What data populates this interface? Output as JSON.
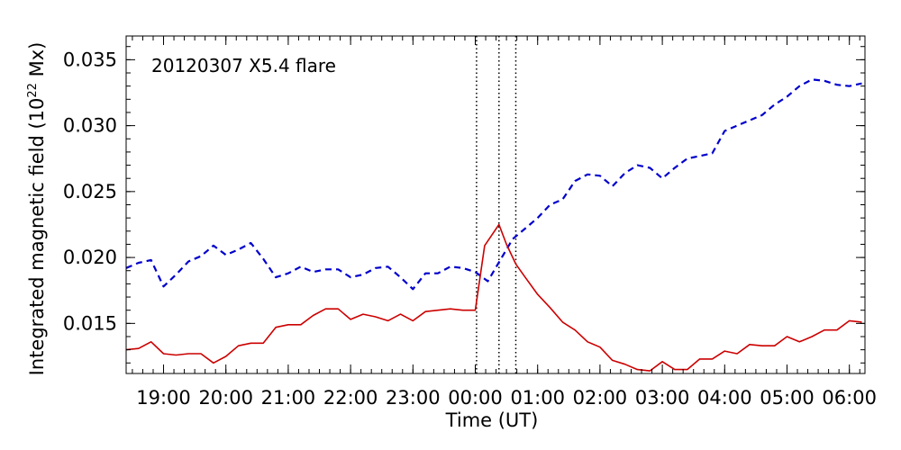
{
  "chart_data": {
    "type": "line",
    "annotation": "20120307 X5.4 flare",
    "xlabel": "Time (UT)",
    "ylabel_main": "Integrated magnetic field (10",
    "ylabel_sup": "22",
    "ylabel_end": " Mx)",
    "x_unit": "hours after 2012-03-06 00:00 UT",
    "xlim": [
      18.4,
      30.25
    ],
    "ylim": [
      0.0112,
      0.0368
    ],
    "xticks": [
      {
        "value": 19,
        "label": "19:00"
      },
      {
        "value": 20,
        "label": "20:00"
      },
      {
        "value": 21,
        "label": "21:00"
      },
      {
        "value": 22,
        "label": "22:00"
      },
      {
        "value": 23,
        "label": "23:00"
      },
      {
        "value": 24,
        "label": "00:00"
      },
      {
        "value": 25,
        "label": "01:00"
      },
      {
        "value": 26,
        "label": "02:00"
      },
      {
        "value": 27,
        "label": "03:00"
      },
      {
        "value": 28,
        "label": "04:00"
      },
      {
        "value": 29,
        "label": "05:00"
      },
      {
        "value": 30,
        "label": "06:00"
      }
    ],
    "yticks": [
      {
        "value": 0.015,
        "label": "0.015"
      },
      {
        "value": 0.02,
        "label": "0.020"
      },
      {
        "value": 0.025,
        "label": "0.025"
      },
      {
        "value": 0.03,
        "label": "0.030"
      },
      {
        "value": 0.035,
        "label": "0.035"
      }
    ],
    "vlines": [
      24.02,
      24.38,
      24.65
    ],
    "grid": false,
    "series": [
      {
        "color": "#0000cc",
        "style": "dashed",
        "x": [
          18.4,
          18.6,
          18.8,
          19.0,
          19.2,
          19.4,
          19.6,
          19.8,
          20.0,
          20.2,
          20.4,
          20.6,
          20.8,
          21.0,
          21.2,
          21.4,
          21.6,
          21.8,
          22.0,
          22.2,
          22.4,
          22.6,
          22.8,
          23.0,
          23.2,
          23.4,
          23.6,
          23.8,
          24.0,
          24.2,
          24.4,
          24.6,
          24.8,
          25.0,
          25.2,
          25.4,
          25.6,
          25.8,
          26.0,
          26.2,
          26.4,
          26.6,
          26.8,
          27.0,
          27.2,
          27.4,
          27.6,
          27.8,
          28.0,
          28.2,
          28.4,
          28.6,
          28.8,
          29.0,
          29.2,
          29.4,
          29.6,
          29.8,
          30.0,
          30.2
        ],
        "y": [
          0.0192,
          0.0196,
          0.0198,
          0.0178,
          0.0187,
          0.0197,
          0.0201,
          0.0209,
          0.0202,
          0.0206,
          0.0211,
          0.0199,
          0.0185,
          0.0188,
          0.0193,
          0.0189,
          0.0191,
          0.0191,
          0.0185,
          0.0187,
          0.0192,
          0.0193,
          0.0185,
          0.0176,
          0.0188,
          0.0188,
          0.0193,
          0.0192,
          0.0189,
          0.0182,
          0.0198,
          0.0214,
          0.0222,
          0.023,
          0.024,
          0.0244,
          0.0258,
          0.0263,
          0.0262,
          0.0254,
          0.0264,
          0.027,
          0.0268,
          0.026,
          0.0268,
          0.0275,
          0.0277,
          0.0279,
          0.0296,
          0.03,
          0.0304,
          0.0308,
          0.0316,
          0.0322,
          0.033,
          0.0335,
          0.0334,
          0.0331,
          0.033,
          0.0332
        ]
      },
      {
        "color": "#cc0000",
        "style": "solid",
        "x": [
          18.4,
          18.6,
          18.8,
          19.0,
          19.2,
          19.4,
          19.6,
          19.8,
          20.0,
          20.2,
          20.4,
          20.6,
          20.8,
          21.0,
          21.2,
          21.4,
          21.6,
          21.8,
          22.0,
          22.2,
          22.4,
          22.6,
          22.8,
          23.0,
          23.2,
          23.4,
          23.6,
          23.8,
          24.0,
          24.15,
          24.38,
          24.5,
          24.65,
          24.8,
          25.0,
          25.2,
          25.4,
          25.6,
          25.8,
          26.0,
          26.2,
          26.4,
          26.6,
          26.8,
          27.0,
          27.2,
          27.4,
          27.6,
          27.8,
          28.0,
          28.2,
          28.4,
          28.6,
          28.8,
          29.0,
          29.2,
          29.4,
          29.6,
          29.8,
          30.0,
          30.2
        ],
        "y": [
          0.013,
          0.0131,
          0.0136,
          0.0127,
          0.0126,
          0.0127,
          0.0127,
          0.012,
          0.0125,
          0.0133,
          0.0135,
          0.0135,
          0.0147,
          0.0149,
          0.0149,
          0.0156,
          0.0161,
          0.0161,
          0.0153,
          0.0157,
          0.0155,
          0.0152,
          0.0157,
          0.0152,
          0.0159,
          0.016,
          0.0161,
          0.016,
          0.016,
          0.0209,
          0.0225,
          0.021,
          0.0195,
          0.0185,
          0.0172,
          0.0162,
          0.0151,
          0.0145,
          0.0136,
          0.0132,
          0.0122,
          0.0119,
          0.0115,
          0.0114,
          0.0121,
          0.0115,
          0.0115,
          0.0123,
          0.0123,
          0.0129,
          0.0127,
          0.0134,
          0.0133,
          0.0133,
          0.014,
          0.0136,
          0.014,
          0.0145,
          0.0145,
          0.0152,
          0.0151
        ]
      }
    ]
  }
}
